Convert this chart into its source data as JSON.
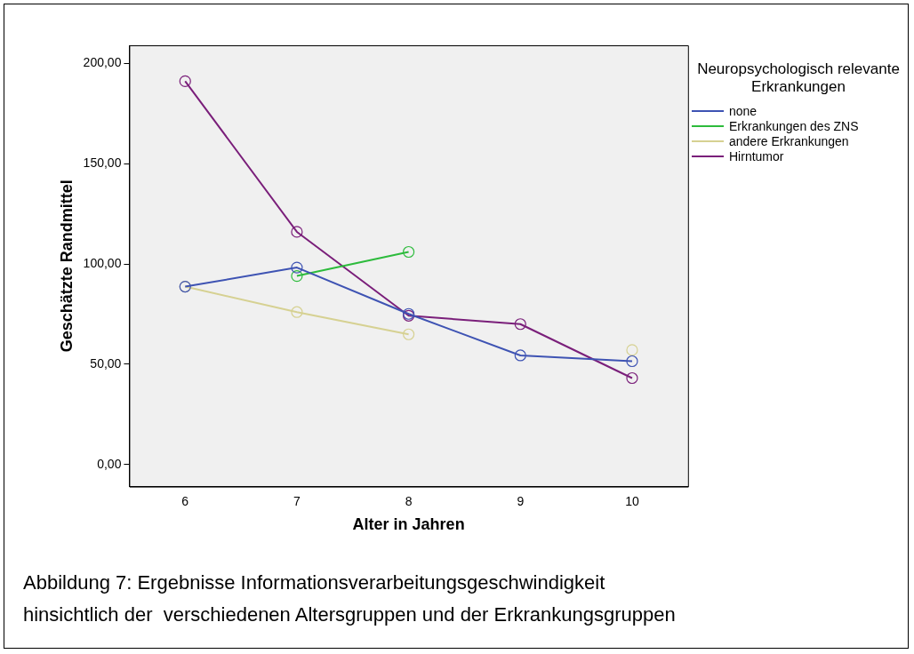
{
  "chart_data": {
    "type": "line",
    "xlabel": "Alter in Jahren",
    "ylabel": "Geschätzte Randmittel",
    "legend_title": "Neuropsychologisch relevante Erkrankungen",
    "legend": "top right",
    "marker": "circle",
    "line_style": "solid",
    "grid": false,
    "categories": [
      "6",
      "7",
      "8",
      "9",
      "10"
    ],
    "ylim": [
      -11,
      209
    ],
    "yticks": [
      {
        "value": 0,
        "label": "0,00"
      },
      {
        "value": 50,
        "label": "50,00"
      },
      {
        "value": 100,
        "label": "100,00"
      },
      {
        "value": 150,
        "label": "150,00"
      },
      {
        "value": 200,
        "label": "200,00"
      }
    ],
    "series": [
      {
        "name": "none",
        "color": "#3e53b3",
        "values": [
          88.7,
          98.2,
          75.1,
          54.4,
          51.5
        ]
      },
      {
        "name": "Erkrankungen des ZNS",
        "color": "#2dbb3c",
        "values": [
          null,
          94.0,
          106.0,
          null,
          null
        ]
      },
      {
        "name": "andere Erkrankungen",
        "color": "#d6d192",
        "values": [
          88.7,
          76.0,
          64.9,
          null,
          57.1
        ]
      },
      {
        "name": "Hirntumor",
        "color": "#7a1f7a",
        "values": [
          191.1,
          116.0,
          74.2,
          70.0,
          43.1
        ]
      }
    ],
    "annotations": [
      "Abbildung 7: Ergebnisse Informationsverarbeitungsgeschwindigkeit hinsichtlich der  verschiedenen Altersgruppen und der Erkrankungsgruppen"
    ]
  }
}
